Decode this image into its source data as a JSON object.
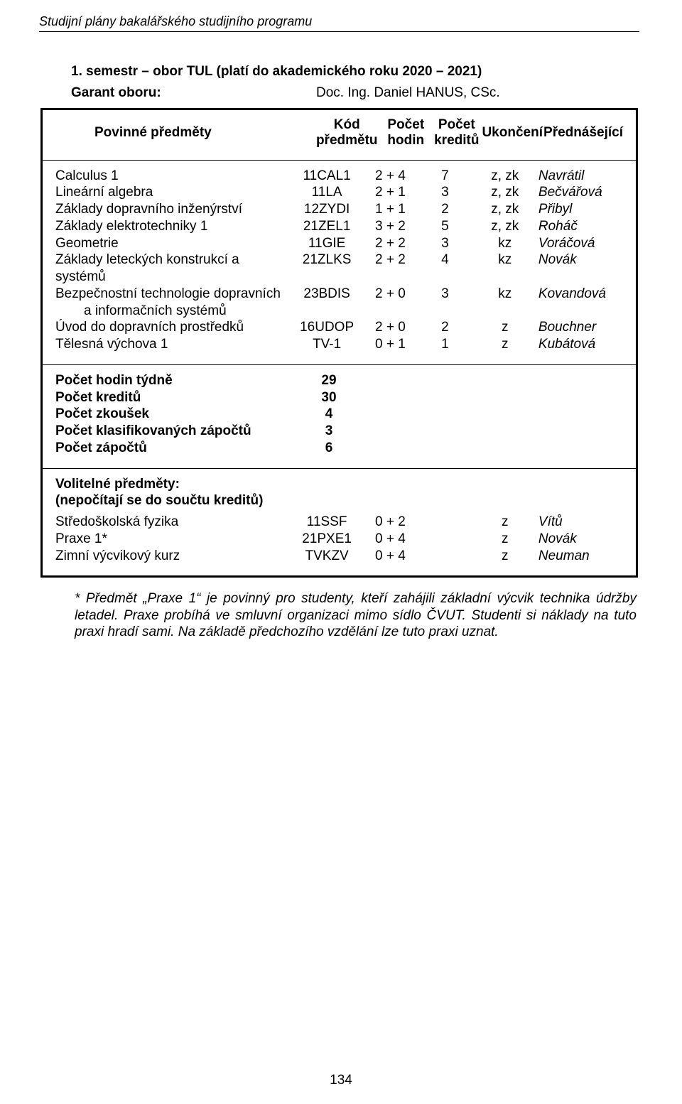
{
  "running_head": "Studijní plány bakalářského studijního programu",
  "title_line": "1. semestr – obor TUL (platí do akademického roku 2020 – 2021)",
  "garant_label": "Garant oboru:",
  "garant_value": "Doc. Ing. Daniel HANUS, CSc.",
  "headers": {
    "povinne": "Povinné předměty",
    "code": "Kód předmětu",
    "hours": "Počet hodin",
    "credits": "Počet kreditů",
    "end": "Ukončení",
    "teacher": "Přednášející"
  },
  "subjects": [
    {
      "name": "Calculus 1",
      "code": "11CAL1",
      "hours": "2 + 4",
      "credits": "7",
      "end": "z, zk",
      "teacher": "Navrátil"
    },
    {
      "name": "Lineární algebra",
      "code": "11LA",
      "hours": "2 + 1",
      "credits": "3",
      "end": "z, zk",
      "teacher": "Bečvářová"
    },
    {
      "name": "Základy dopravního inženýrství",
      "code": "12ZYDI",
      "hours": "1 + 1",
      "credits": "2",
      "end": "z, zk",
      "teacher": "Přibyl"
    },
    {
      "name": "Základy elektrotechniky 1",
      "code": "21ZEL1",
      "hours": "3 + 2",
      "credits": "5",
      "end": "z, zk",
      "teacher": "Roháč"
    },
    {
      "name": "Geometrie",
      "code": "11GIE",
      "hours": "2 + 2",
      "credits": "3",
      "end": "kz",
      "teacher": "Voráčová"
    },
    {
      "name": "Základy leteckých konstrukcí a systémů",
      "code": "21ZLKS",
      "hours": "2 + 2",
      "credits": "4",
      "end": "kz",
      "teacher": "Novák"
    },
    {
      "name": "Bezpečnostní technologie dopravních",
      "sub": "a informačních systémů",
      "code": "23BDIS",
      "hours": "2 + 0",
      "credits": "3",
      "end": "kz",
      "teacher": "Kovandová"
    },
    {
      "name": "Úvod do dopravních prostředků",
      "code": "16UDOP",
      "hours": "2 + 0",
      "credits": "2",
      "end": "z",
      "teacher": "Bouchner"
    },
    {
      "name": "Tělesná výchova 1",
      "code": "TV-1",
      "hours": "0 + 1",
      "credits": "1",
      "end": "z",
      "teacher": "Kubátová"
    }
  ],
  "summary": [
    {
      "label": "Počet hodin týdně",
      "val": "29"
    },
    {
      "label": "Počet kreditů",
      "val": "30"
    },
    {
      "label": "Počet zkoušek",
      "val": "4"
    },
    {
      "label": "Počet klasifikovaných zápočtů",
      "val": "3"
    },
    {
      "label": "Počet zápočtů",
      "val": "6"
    }
  ],
  "optional_head1": "Volitelné předměty:",
  "optional_head2": "(nepočítají se do součtu kreditů)",
  "optional": [
    {
      "name": "Středoškolská fyzika",
      "code": "11SSF",
      "hours": "0 + 2",
      "end": "z",
      "teacher": "Vítů"
    },
    {
      "name": "Praxe 1*",
      "code": "21PXE1",
      "hours": "0 + 4",
      "end": "z",
      "teacher": "Novák"
    },
    {
      "name": "Zimní výcvikový kurz",
      "code": "TVKZV",
      "hours": "0 + 4",
      "end": "z",
      "teacher": "Neuman"
    }
  ],
  "footnote": "* Předmět „Praxe 1“ je povinný pro studenty, kteří zahájili základní výcvik technika údržby letadel. Praxe probíhá ve smluvní organizaci mimo sídlo ČVUT. Studenti si náklady na tuto praxi hradí sami. Na základě předchozího vzdělání lze tuto praxi uznat.",
  "page_number": "134"
}
